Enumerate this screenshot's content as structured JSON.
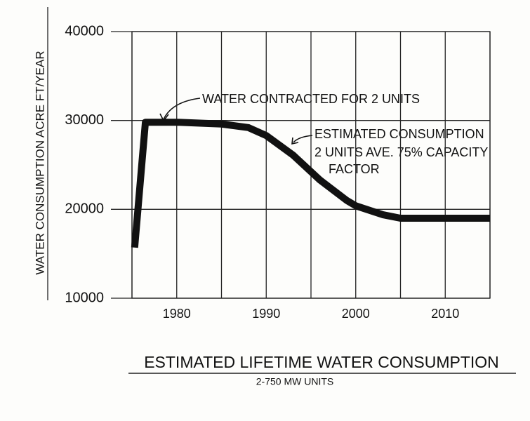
{
  "chart_data": {
    "type": "line",
    "title": "ESTIMATED LIFETIME WATER CONSUMPTION",
    "subtitle": "2-750 MW UNITS",
    "ylabel": "WATER CONSUMPTION ACRE FT/YEAR",
    "annotations": [
      "WATER CONTRACTED FOR 2 UNITS",
      "ESTIMATED CONSUMPTION",
      "2 UNITS  AVE. 75% CAPACITY",
      "FACTOR"
    ],
    "x": [
      1975.3,
      1976.5,
      1980,
      1985,
      1988,
      1990,
      1993,
      1996,
      1999,
      2000,
      2003,
      2005,
      2010,
      2015
    ],
    "values": [
      15700,
      29800,
      29800,
      29600,
      29200,
      28300,
      26100,
      23300,
      21000,
      20400,
      19400,
      19000,
      19000,
      19000
    ],
    "color": "#111111",
    "xlim": [
      1975,
      2015
    ],
    "ylim": [
      10000,
      40000
    ],
    "xticks": [
      1980,
      1990,
      2000,
      2010
    ],
    "xgrid": [
      1975,
      1980,
      1985,
      1990,
      1995,
      2000,
      2005,
      2010,
      2015
    ],
    "yticks": [
      10000,
      20000,
      30000,
      40000
    ],
    "grid": true
  }
}
